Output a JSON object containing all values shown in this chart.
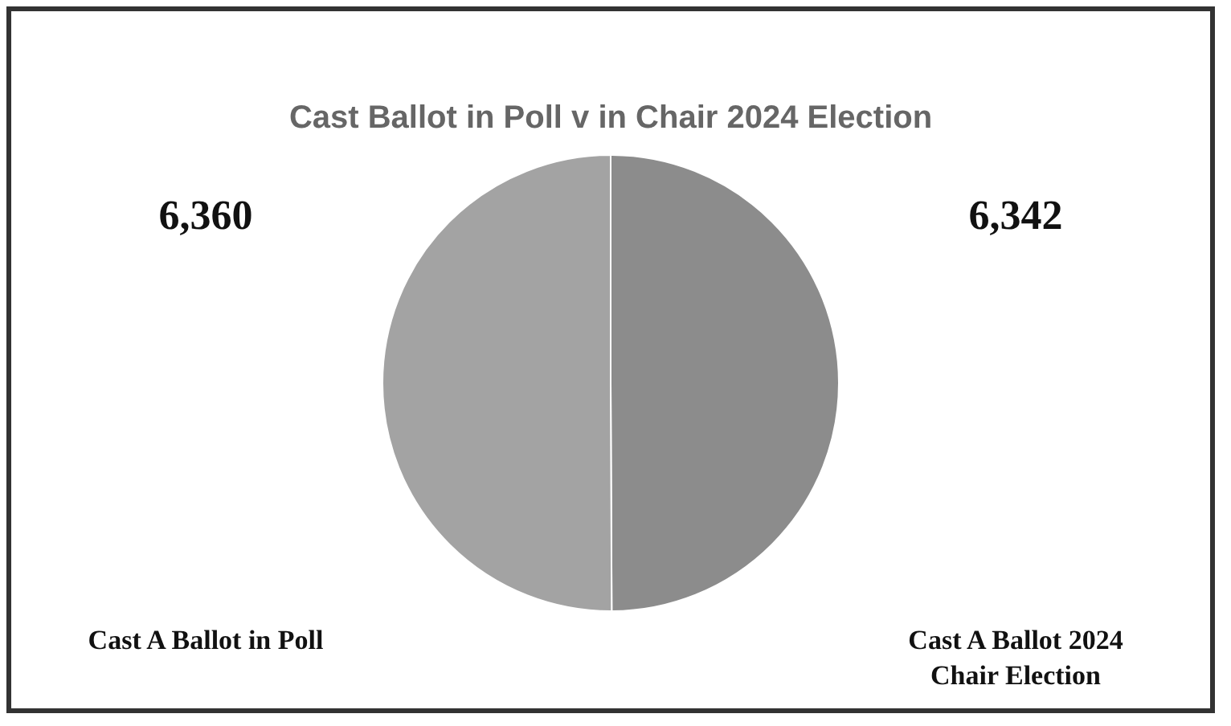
{
  "chart_data": {
    "type": "pie",
    "title": "Cast Ballot in Poll v in Chair 2024 Election",
    "categories": [
      "Cast A Ballot 2024 Chair Election",
      "Cast A Ballot in Poll"
    ],
    "values": [
      6342,
      6360
    ],
    "colors": [
      "#8c8c8c",
      "#a3a3a3"
    ],
    "value_labels": [
      "6,342",
      "6,360"
    ],
    "legend": false
  }
}
